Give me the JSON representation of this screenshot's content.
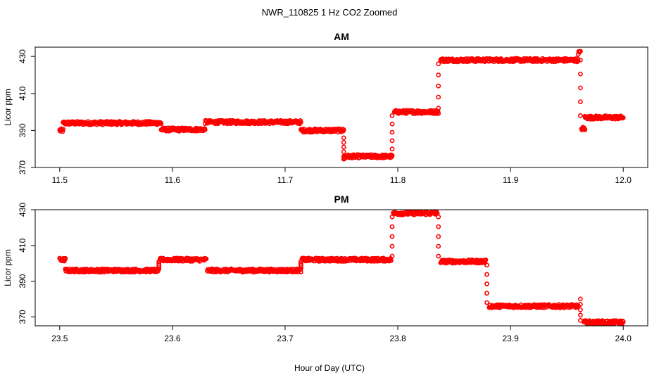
{
  "figure_title": "NWR_110825  1 Hz CO2 Zoomed",
  "xlabel": "Hour of Day (UTC)",
  "point_color": "#ff0000",
  "chart_data": [
    {
      "type": "scatter",
      "title": "AM",
      "ylabel": "Licor ppm",
      "xlim": [
        11.5,
        12.0
      ],
      "ylim": [
        370,
        435
      ],
      "xticks": [
        "11.5",
        "11.6",
        "11.7",
        "11.8",
        "11.9",
        "12.0"
      ],
      "yticks": [
        "370",
        "390",
        "410",
        "430"
      ],
      "series": [
        {
          "marker": "open-circle",
          "segments": [
            {
              "x": [
                11.5,
                11.503
              ],
              "y": [
                390,
                390
              ]
            },
            {
              "x": [
                11.503,
                11.59
              ],
              "y": [
                394,
                394
              ]
            },
            {
              "x": [
                11.59,
                11.629
              ],
              "y": [
                390.5,
                390.5
              ]
            },
            {
              "x": [
                11.629,
                11.714
              ],
              "y": [
                394.5,
                394.5
              ]
            },
            {
              "x": [
                11.714,
                11.752
              ],
              "y": [
                390,
                390
              ]
            },
            {
              "x": [
                11.752,
                11.753
              ],
              "y": [
                375,
                375
              ]
            },
            {
              "x": [
                11.753,
                11.795
              ],
              "y": [
                376,
                376
              ]
            },
            {
              "x": [
                11.797,
                11.836
              ],
              "y": [
                400,
                400
              ]
            },
            {
              "x": [
                11.838,
                11.96
              ],
              "y": [
                428,
                428
              ]
            },
            {
              "x": [
                11.96,
                11.962
              ],
              "y": [
                432,
                432
              ]
            },
            {
              "x": [
                11.963,
                11.966
              ],
              "y": [
                391,
                391
              ]
            },
            {
              "x": [
                11.966,
                12.0
              ],
              "y": [
                397,
                397
              ]
            }
          ],
          "transitions": [
            {
              "x": 11.752,
              "y": [
                376,
                386
              ]
            },
            {
              "x": 11.795,
              "y": [
                380,
                398
              ]
            },
            {
              "x": 11.836,
              "y": [
                402,
                426
              ]
            },
            {
              "x": 11.962,
              "y": [
                398,
                428
              ]
            }
          ]
        }
      ]
    },
    {
      "type": "scatter",
      "title": "PM",
      "ylabel": "Licor ppm",
      "xlim": [
        23.5,
        24.0
      ],
      "ylim": [
        365,
        430
      ],
      "xticks": [
        "23.5",
        "23.6",
        "23.7",
        "23.8",
        "23.9",
        "24.0"
      ],
      "yticks": [
        "370",
        "390",
        "410",
        "430"
      ],
      "series": [
        {
          "marker": "open-circle",
          "segments": [
            {
              "x": [
                23.5,
                23.505
              ],
              "y": [
                402,
                402
              ]
            },
            {
              "x": [
                23.505,
                23.588
              ],
              "y": [
                396,
                396
              ]
            },
            {
              "x": [
                23.589,
                23.63
              ],
              "y": [
                402,
                402
              ]
            },
            {
              "x": [
                23.631,
                23.714
              ],
              "y": [
                396,
                396
              ]
            },
            {
              "x": [
                23.715,
                23.794
              ],
              "y": [
                402,
                402
              ]
            },
            {
              "x": [
                23.796,
                23.835
              ],
              "y": [
                428,
                428
              ]
            },
            {
              "x": [
                23.838,
                23.878
              ],
              "y": [
                401,
                401
              ]
            },
            {
              "x": [
                23.881,
                23.96
              ],
              "y": [
                376,
                376
              ]
            },
            {
              "x": [
                23.965,
                24.0
              ],
              "y": [
                367,
                367
              ]
            }
          ],
          "transitions": [
            {
              "x": 23.588,
              "y": [
                397,
                401
              ]
            },
            {
              "x": 23.714,
              "y": [
                397,
                401
              ]
            },
            {
              "x": 23.795,
              "y": [
                404,
                426
              ]
            },
            {
              "x": 23.836,
              "y": [
                404,
                426
              ]
            },
            {
              "x": 23.879,
              "y": [
                378,
                399
              ]
            },
            {
              "x": 23.962,
              "y": [
                368,
                380
              ]
            }
          ]
        }
      ]
    }
  ]
}
